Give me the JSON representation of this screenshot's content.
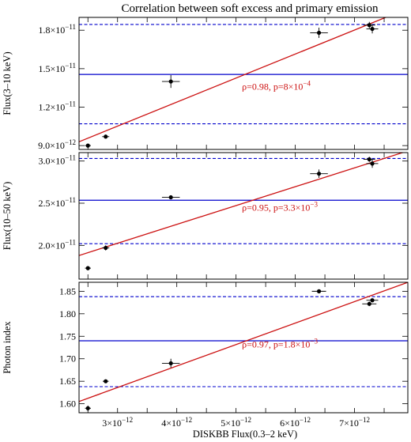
{
  "chart_data": [
    {
      "type": "scatter",
      "title": "Correlation between soft excess and primary emission",
      "ylabel": "Flux(3–10 keV)",
      "xlabel": "",
      "xlim": [
        2.35e-12,
        7.9e-12
      ],
      "ylim": [
        8.7e-12,
        1.9e-11
      ],
      "x_ticks": [
        2.5e-12,
        3e-12,
        3.5e-12,
        4e-12,
        4.5e-12,
        5e-12,
        5.5e-12,
        6e-12,
        6.5e-12,
        7e-12,
        7.5e-12
      ],
      "y_ticks": [
        {
          "value": 9e-12,
          "label": "9.0×10",
          "exp": "−12"
        },
        {
          "value": 1.2e-11,
          "label": "1.2×10",
          "exp": "−11"
        },
        {
          "value": 1.5e-11,
          "label": "1.5×10",
          "exp": "−11"
        },
        {
          "value": 1.8e-11,
          "label": "1.8×10",
          "exp": "−11"
        }
      ],
      "points": [
        {
          "x": 2.5e-12,
          "y": 9e-12,
          "xerr": 5e-14,
          "yerr": 1.5e-13
        },
        {
          "x": 2.8e-12,
          "y": 9.7e-12,
          "xerr": 6e-14,
          "yerr": 1.5e-13
        },
        {
          "x": 3.9e-12,
          "y": 1.4e-11,
          "xerr": 1.5e-13,
          "yerr": 5e-13
        },
        {
          "x": 6.4e-12,
          "y": 1.78e-11,
          "xerr": 1.5e-13,
          "yerr": 4e-13
        },
        {
          "x": 7.25e-12,
          "y": 1.84e-11,
          "xerr": 1e-13,
          "yerr": 2.5e-13
        },
        {
          "x": 7.3e-12,
          "y": 1.81e-11,
          "xerr": 1e-13,
          "yerr": 3.5e-13
        }
      ],
      "fit_line": {
        "x": [
          2.35e-12,
          7.9e-12
        ],
        "y": [
          9.3e-12,
          1.97e-11
        ],
        "color": "#cc1111"
      },
      "mean_line": {
        "y": 1.455e-11,
        "color": "#0000cc"
      },
      "sigma_lines": {
        "y": [
          1.07e-11,
          1.845e-11
        ],
        "color": "#0000cc"
      },
      "annotation": {
        "text": "ρ=0.98, p=8×10",
        "exp": "−4",
        "x": 5.1e-12,
        "y": 1.335e-11,
        "color": "#cc1111"
      }
    },
    {
      "type": "scatter",
      "ylabel": "Flux(10–50 keV)",
      "xlabel": "",
      "xlim": [
        2.35e-12,
        7.9e-12
      ],
      "ylim": [
        1.6e-11,
        3.1e-11
      ],
      "x_ticks": [
        2.5e-12,
        3e-12,
        3.5e-12,
        4e-12,
        4.5e-12,
        5e-12,
        5.5e-12,
        6e-12,
        6.5e-12,
        7e-12,
        7.5e-12
      ],
      "y_ticks": [
        {
          "value": 2e-11,
          "label": "2.0×10",
          "exp": "−11"
        },
        {
          "value": 2.5e-11,
          "label": "2.5×10",
          "exp": "−11"
        },
        {
          "value": 3e-11,
          "label": "3.0×10",
          "exp": "−11"
        }
      ],
      "points": [
        {
          "x": 2.5e-12,
          "y": 1.73e-11,
          "xerr": 5e-14,
          "yerr": 2.5e-13
        },
        {
          "x": 2.8e-12,
          "y": 1.97e-11,
          "xerr": 6e-14,
          "yerr": 3e-13
        },
        {
          "x": 3.9e-12,
          "y": 2.57e-11,
          "xerr": 1.5e-13,
          "yerr": 2e-13
        },
        {
          "x": 6.4e-12,
          "y": 2.85e-11,
          "xerr": 1.5e-13,
          "yerr": 5e-13
        },
        {
          "x": 7.25e-12,
          "y": 3.02e-11,
          "xerr": 1e-13,
          "yerr": 3e-13
        },
        {
          "x": 7.3e-12,
          "y": 2.97e-11,
          "xerr": 1e-13,
          "yerr": 5e-13
        }
      ],
      "fit_line": {
        "x": [
          2.35e-12,
          7.9e-12
        ],
        "y": [
          1.88e-11,
          3.12e-11
        ],
        "color": "#cc1111"
      },
      "mean_line": {
        "y": 2.535e-11,
        "color": "#0000cc"
      },
      "sigma_lines": {
        "y": [
          2.02e-11,
          3.03e-11
        ],
        "color": "#0000cc"
      },
      "annotation": {
        "text": "ρ=0.95, p=3.3×10",
        "exp": "−3",
        "x": 5.1e-12,
        "y": 2.41e-11,
        "color": "#cc1111"
      }
    },
    {
      "type": "scatter",
      "ylabel": "Photon index",
      "xlabel": "DISKBB Flux(0.3–2 keV)",
      "xlim": [
        2.35e-12,
        7.9e-12
      ],
      "ylim": [
        1.58,
        1.87
      ],
      "x_ticks": [
        2.5e-12,
        3e-12,
        3.5e-12,
        4e-12,
        4.5e-12,
        5e-12,
        5.5e-12,
        6e-12,
        6.5e-12,
        7e-12,
        7.5e-12
      ],
      "x_tick_labels": [
        {
          "value": 3e-12,
          "label": "3×10",
          "exp": "−12"
        },
        {
          "value": 4e-12,
          "label": "4×10",
          "exp": "−12"
        },
        {
          "value": 5e-12,
          "label": "5×10",
          "exp": "−12"
        },
        {
          "value": 6e-12,
          "label": "6×10",
          "exp": "−12"
        },
        {
          "value": 7e-12,
          "label": "7×10",
          "exp": "−12"
        }
      ],
      "y_ticks": [
        {
          "value": 1.6,
          "label": "1.60",
          "exp": ""
        },
        {
          "value": 1.65,
          "label": "1.65",
          "exp": ""
        },
        {
          "value": 1.7,
          "label": "1.70",
          "exp": ""
        },
        {
          "value": 1.75,
          "label": "1.75",
          "exp": ""
        },
        {
          "value": 1.8,
          "label": "1.80",
          "exp": ""
        },
        {
          "value": 1.85,
          "label": "1.85",
          "exp": ""
        }
      ],
      "points": [
        {
          "x": 2.5e-12,
          "y": 1.59,
          "xerr": 5e-14,
          "yerr": 0.006
        },
        {
          "x": 2.8e-12,
          "y": 1.65,
          "xerr": 5e-14,
          "yerr": 0.003
        },
        {
          "x": 3.9e-12,
          "y": 1.69,
          "xerr": 1.5e-13,
          "yerr": 0.01
        },
        {
          "x": 6.4e-12,
          "y": 1.85,
          "xerr": 1.2e-13,
          "yerr": 0.003
        },
        {
          "x": 7.25e-12,
          "y": 1.822,
          "xerr": 1.2e-13,
          "yerr": 0.005
        },
        {
          "x": 7.3e-12,
          "y": 1.83,
          "xerr": 1e-13,
          "yerr": 0.004
        }
      ],
      "fit_line": {
        "x": [
          2.35e-12,
          7.9e-12
        ],
        "y": [
          1.605,
          1.87
        ],
        "color": "#cc1111"
      },
      "mean_line": {
        "y": 1.74,
        "color": "#0000cc"
      },
      "sigma_lines": {
        "y": [
          1.638,
          1.838
        ],
        "color": "#0000cc"
      },
      "annotation": {
        "text": "ρ=0.97, p=1.8×10",
        "exp": "−3",
        "x": 5.1e-12,
        "y": 1.725,
        "color": "#cc1111"
      }
    }
  ]
}
